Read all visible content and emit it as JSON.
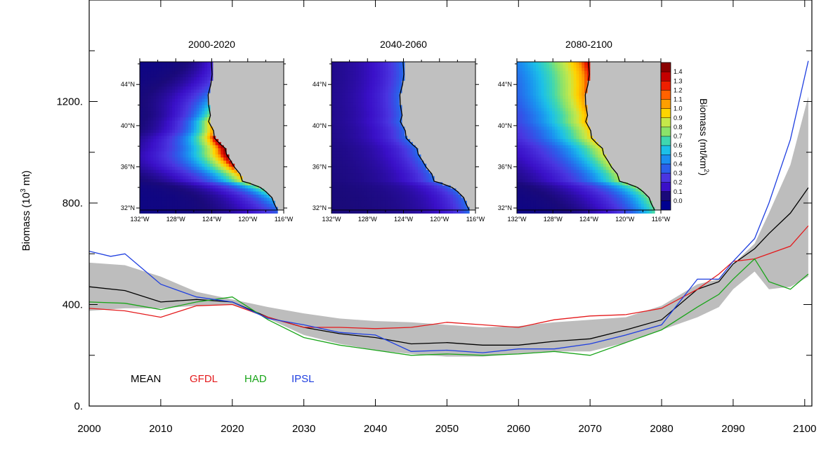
{
  "chart_data": {
    "type": "line",
    "title": "",
    "xlabel": "",
    "ylabel_prefix": "Biomass (10",
    "ylabel_exp": "3",
    "ylabel_suffix": " mt)",
    "xlim": [
      2000,
      2101
    ],
    "ylim": [
      0,
      1600
    ],
    "x_ticks": [
      2000,
      2010,
      2020,
      2030,
      2040,
      2050,
      2060,
      2070,
      2080,
      2090,
      2100
    ],
    "y_ticks": [
      0,
      400,
      800,
      1200
    ],
    "y_tick_labels": [
      "0.",
      "400.",
      "800.",
      "1200."
    ],
    "grid": false,
    "legend": {
      "position": "bottom-left",
      "orientation": "horizontal"
    },
    "band": {
      "color": "#bdbdbd",
      "x": [
        2000,
        2005,
        2010,
        2015,
        2020,
        2025,
        2030,
        2035,
        2040,
        2045,
        2050,
        2055,
        2060,
        2065,
        2070,
        2075,
        2080,
        2085,
        2088,
        2090,
        2093,
        2095,
        2098,
        2100.5
      ],
      "upper": [
        565,
        555,
        510,
        450,
        420,
        390,
        365,
        345,
        335,
        330,
        320,
        310,
        315,
        330,
        340,
        350,
        395,
        480,
        500,
        560,
        640,
        760,
        950,
        1220
      ],
      "lower": [
        375,
        385,
        385,
        395,
        400,
        345,
        280,
        245,
        220,
        205,
        195,
        195,
        205,
        215,
        215,
        250,
        300,
        350,
        390,
        460,
        530,
        460,
        470,
        510
      ]
    },
    "series": [
      {
        "name": "MEAN",
        "color": "#000000",
        "x": [
          2000,
          2005,
          2010,
          2015,
          2020,
          2025,
          2030,
          2035,
          2040,
          2045,
          2050,
          2055,
          2060,
          2065,
          2070,
          2075,
          2080,
          2085,
          2088,
          2090,
          2093,
          2095,
          2098,
          2100.5
        ],
        "values": [
          470,
          455,
          410,
          420,
          410,
          350,
          310,
          285,
          270,
          245,
          250,
          240,
          240,
          255,
          265,
          300,
          340,
          460,
          490,
          560,
          620,
          680,
          760,
          860
        ]
      },
      {
        "name": "GFDL",
        "color": "#e41a1c",
        "x": [
          2000,
          2005,
          2010,
          2015,
          2020,
          2025,
          2030,
          2035,
          2040,
          2045,
          2050,
          2055,
          2060,
          2065,
          2070,
          2075,
          2080,
          2085,
          2088,
          2090,
          2093,
          2095,
          2098,
          2100.5
        ],
        "values": [
          385,
          375,
          350,
          395,
          400,
          350,
          310,
          310,
          305,
          310,
          330,
          320,
          310,
          340,
          355,
          360,
          385,
          460,
          520,
          570,
          580,
          600,
          630,
          710
        ]
      },
      {
        "name": "HAD",
        "color": "#1aa51a",
        "x": [
          2000,
          2005,
          2010,
          2015,
          2020,
          2025,
          2030,
          2035,
          2040,
          2045,
          2050,
          2055,
          2060,
          2065,
          2070,
          2075,
          2080,
          2085,
          2088,
          2090,
          2093,
          2095,
          2098,
          2100.5
        ],
        "values": [
          410,
          405,
          380,
          410,
          430,
          340,
          270,
          240,
          220,
          200,
          205,
          200,
          205,
          215,
          200,
          250,
          300,
          390,
          440,
          500,
          580,
          490,
          460,
          520
        ]
      },
      {
        "name": "IPSL",
        "color": "#1f3fe0",
        "x": [
          2000,
          2003,
          2005,
          2010,
          2015,
          2020,
          2025,
          2030,
          2035,
          2040,
          2045,
          2050,
          2055,
          2060,
          2065,
          2070,
          2075,
          2080,
          2085,
          2088,
          2090,
          2093,
          2095,
          2098,
          2100.5
        ],
        "values": [
          610,
          590,
          600,
          480,
          430,
          410,
          345,
          320,
          290,
          280,
          215,
          220,
          210,
          225,
          225,
          245,
          280,
          320,
          500,
          500,
          570,
          660,
          800,
          1050,
          1360
        ]
      }
    ]
  },
  "insets": [
    {
      "title": "2000-2020"
    },
    {
      "title": "2040-2060"
    },
    {
      "title": "2080-2100"
    }
  ],
  "map_axes": {
    "lat_labels": [
      "44°N",
      "40°N",
      "36°N",
      "32°N"
    ],
    "lon_labels": [
      "132°W",
      "128°W",
      "124°W",
      "120°W",
      "116°W"
    ]
  },
  "colorbar": {
    "title_prefix": "Biomass (mt/km",
    "title_exp": "2",
    "title_suffix": ")",
    "labels": [
      "1.4",
      "1.3",
      "1.2",
      "1.1",
      "1.0",
      "0.9",
      "0.8",
      "0.7",
      "0.6",
      "0.5",
      "0.4",
      "0.3",
      "0.2",
      "0.1",
      "0.0"
    ],
    "colors": [
      "#8a0000",
      "#c40000",
      "#ee1f00",
      "#ff6200",
      "#ff9f00",
      "#ffd400",
      "#c6e84a",
      "#8be36a",
      "#3fd7b0",
      "#1cc0e8",
      "#1b8ff0",
      "#2b5fea",
      "#4a35e0",
      "#3a10c8",
      "#1a0a7a",
      "#000090"
    ]
  }
}
